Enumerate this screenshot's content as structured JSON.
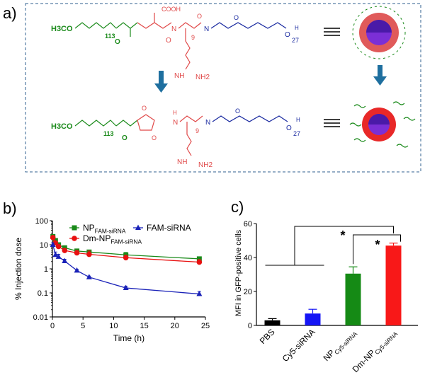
{
  "panel_labels": {
    "a": "a)",
    "b": "b)",
    "c": "c)"
  },
  "schematic": {
    "top_structure": {
      "peg_start": "H3CO",
      "peg_repeat": "113",
      "acid_label": "COOH",
      "arg_repeat": "9",
      "pcl_repeat": "27",
      "guanidine_nh": "NH",
      "guanidine_nh2": "NH2",
      "amide_n": "N",
      "amide_h": "H"
    },
    "bottom_structure": {
      "peg_start": "H3CO",
      "peg_repeat": "113",
      "arg_repeat": "9",
      "pcl_repeat": "27",
      "guanidine_nh": "NH",
      "guanidine_nh2": "NH2",
      "amide_n": "N",
      "amide_h": "H",
      "amine_h": "H"
    },
    "colors": {
      "peg": "#1a8a1a",
      "linker": "#e04848",
      "pcl": "#1a2aa0",
      "arrow": "#1e6f9f"
    }
  },
  "chart_data": [
    {
      "type": "line",
      "panel": "b",
      "xlabel": "Time (h)",
      "ylabel": "% Injection dose",
      "x_ticks": [
        "0",
        "5",
        "10",
        "15",
        "20",
        "25"
      ],
      "y_ticks": [
        "0.01",
        "0.1",
        "1",
        "10",
        "100"
      ],
      "xlim": [
        0,
        25
      ],
      "ylim": [
        0.01,
        100
      ],
      "y_scale": "log",
      "legend_placement": "top",
      "series": [
        {
          "name": "NPFAM-siRNA",
          "name_main": "NP",
          "name_sub": "FAM-siRNA",
          "color": "#1a8a1a",
          "marker": "square",
          "x": [
            0.08,
            0.5,
            1,
            2,
            4,
            6,
            12,
            24
          ],
          "y": [
            22,
            15,
            10,
            7.5,
            5.5,
            5,
            3.8,
            2.6
          ],
          "err": [
            3,
            2,
            2,
            1.2,
            1.0,
            1.0,
            1.0,
            0.5
          ]
        },
        {
          "name": "Dm-NPFAM-siRNA",
          "name_main": "Dm-NP",
          "name_sub": "FAM-siRNA",
          "color": "#e81010",
          "marker": "circle",
          "x": [
            0.08,
            0.5,
            1,
            2,
            4,
            6,
            12,
            24
          ],
          "y": [
            20,
            12,
            8.5,
            5.8,
            4.6,
            4,
            2.9,
            1.9
          ],
          "err": [
            3,
            2,
            1.5,
            1.0,
            1.2,
            1.5,
            0.8,
            0.5
          ]
        },
        {
          "name": "FAM-siRNA",
          "name_main": "FAM-siRNA",
          "name_sub": "",
          "color": "#1a22b8",
          "marker": "triangle",
          "x": [
            0.08,
            0.5,
            1,
            2,
            4,
            6,
            12,
            24
          ],
          "y": [
            10,
            3.8,
            3.2,
            2.1,
            0.85,
            0.45,
            0.16,
            0.09
          ],
          "err": [
            2,
            1.2,
            0.8,
            0.4,
            0.1,
            0.05,
            0.03,
            0.025
          ]
        }
      ]
    },
    {
      "type": "bar",
      "panel": "c",
      "ylabel": "MFI in GFP-positive  cells",
      "ylim": [
        0,
        60
      ],
      "y_ticks": [
        "0",
        "20",
        "40",
        "60"
      ],
      "categories": [
        "PBS",
        "Cy5-siRNA",
        "NPCy5-siRNA",
        "Dm-NPCy5-siRNA"
      ],
      "category_main": [
        "PBS",
        "Cy5-siRNA",
        "NP",
        "Dm-NP"
      ],
      "category_sub": [
        "",
        "",
        "Cy5-siRNA",
        "Cy5-siRNA"
      ],
      "values": [
        3,
        7,
        30.5,
        47
      ],
      "errors": [
        1,
        2.5,
        4,
        1.5
      ],
      "colors": [
        "#000000",
        "#1515f5",
        "#158a15",
        "#f81818"
      ],
      "annotations": [
        "*",
        "*"
      ]
    }
  ]
}
